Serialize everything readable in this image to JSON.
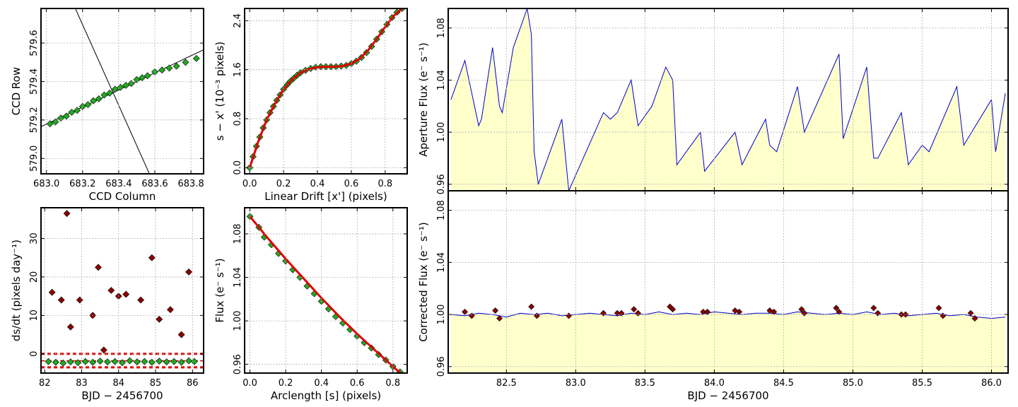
{
  "chart_data": [
    {
      "id": "ccd",
      "type": "scatter",
      "xlabel": "CCD Column",
      "ylabel": "CCD Row",
      "xlim": [
        682.97,
        683.87
      ],
      "ylim": [
        578.92,
        579.78
      ],
      "xticks": [
        683.0,
        683.2,
        683.4,
        683.6,
        683.8
      ],
      "xtick_labels": [
        "683.0",
        "683.2",
        "683.4",
        "683.6",
        "683.8"
      ],
      "yticks": [
        579.0,
        579.2,
        579.4,
        579.6
      ],
      "ytick_labels": [
        "579.0",
        "579.2",
        "579.4",
        "579.6"
      ],
      "grid": true,
      "point_color": "#22aa22",
      "lines": [
        {
          "x": [
            682.97,
            683.87
          ],
          "y": [
            579.165,
            579.565
          ]
        },
        {
          "x": [
            683.16,
            683.57
          ],
          "y": [
            579.78,
            578.92
          ]
        }
      ],
      "points": {
        "x": [
          683.02,
          683.05,
          683.08,
          683.11,
          683.14,
          683.17,
          683.2,
          683.23,
          683.26,
          683.29,
          683.32,
          683.35,
          683.38,
          683.41,
          683.44,
          683.47,
          683.5,
          683.53,
          683.56,
          683.6,
          683.64,
          683.68,
          683.72,
          683.77,
          683.83
        ],
        "y": [
          579.18,
          579.19,
          579.21,
          579.22,
          579.24,
          579.25,
          579.27,
          579.28,
          579.3,
          579.31,
          579.33,
          579.34,
          579.36,
          579.37,
          579.38,
          579.39,
          579.41,
          579.42,
          579.43,
          579.45,
          579.46,
          579.47,
          579.48,
          579.5,
          579.52
        ]
      }
    },
    {
      "id": "drift",
      "type": "scatter",
      "xlabel": "Linear Drift [x'] (pixels)",
      "ylabel": "s − x' (10⁻³ pixels)",
      "xlim": [
        -0.03,
        0.93
      ],
      "ylim": [
        -0.1,
        2.6
      ],
      "xticks": [
        0.0,
        0.2,
        0.4,
        0.6,
        0.8
      ],
      "xtick_labels": [
        "0.0",
        "0.2",
        "0.4",
        "0.6",
        "0.8"
      ],
      "yticks": [
        0.0,
        0.8,
        1.6,
        2.4
      ],
      "ytick_labels": [
        "0.0",
        "0.8",
        "1.6",
        "2.4"
      ],
      "grid": true,
      "point_color": "#22aa22",
      "fit_color": "#dd0000",
      "fit": {
        "x": [
          0.0,
          0.05,
          0.1,
          0.15,
          0.2,
          0.25,
          0.3,
          0.35,
          0.4,
          0.45,
          0.5,
          0.55,
          0.6,
          0.65,
          0.7,
          0.75,
          0.8,
          0.85,
          0.9
        ],
        "y": [
          0.0,
          0.42,
          0.78,
          1.05,
          1.28,
          1.44,
          1.55,
          1.61,
          1.64,
          1.65,
          1.65,
          1.66,
          1.7,
          1.78,
          1.92,
          2.1,
          2.3,
          2.48,
          2.6
        ]
      },
      "points": {
        "x": [
          0.0,
          0.02,
          0.04,
          0.06,
          0.08,
          0.1,
          0.12,
          0.14,
          0.16,
          0.18,
          0.2,
          0.22,
          0.24,
          0.26,
          0.28,
          0.3,
          0.33,
          0.36,
          0.39,
          0.42,
          0.45,
          0.48,
          0.51,
          0.54,
          0.57,
          0.6,
          0.63,
          0.66,
          0.69,
          0.72,
          0.75,
          0.78,
          0.81,
          0.84,
          0.87,
          0.9
        ],
        "y": [
          0.0,
          0.18,
          0.35,
          0.5,
          0.65,
          0.78,
          0.9,
          1.0,
          1.1,
          1.19,
          1.28,
          1.35,
          1.41,
          1.46,
          1.51,
          1.55,
          1.59,
          1.62,
          1.64,
          1.65,
          1.65,
          1.65,
          1.65,
          1.66,
          1.67,
          1.7,
          1.74,
          1.8,
          1.88,
          1.98,
          2.1,
          2.22,
          2.34,
          2.45,
          2.54,
          2.6
        ]
      }
    },
    {
      "id": "aperture",
      "type": "area",
      "xlabel": "",
      "ylabel": "Aperture Flux (e⁻ s⁻¹)",
      "xlim": [
        82.08,
        86.12
      ],
      "ylim": [
        0.955,
        1.095
      ],
      "xticks": [
        82.5,
        83.0,
        83.5,
        84.0,
        84.5,
        85.0,
        85.5,
        86.0
      ],
      "yticks": [
        0.96,
        1.0,
        1.04,
        1.08
      ],
      "ytick_labels": [
        "0.96",
        "1.00",
        "1.04",
        "1.08"
      ],
      "grid": true,
      "line_color": "#0000cc",
      "fill_color": "#ffffcc",
      "x": [
        82.1,
        82.2,
        82.3,
        82.32,
        82.4,
        82.45,
        82.47,
        82.55,
        82.65,
        82.68,
        82.7,
        82.73,
        82.9,
        82.95,
        83.2,
        83.25,
        83.3,
        83.4,
        83.45,
        83.55,
        83.65,
        83.7,
        83.73,
        83.9,
        83.93,
        84.15,
        84.2,
        84.37,
        84.4,
        84.45,
        84.6,
        84.65,
        84.9,
        84.93,
        85.1,
        85.15,
        85.18,
        85.35,
        85.4,
        85.5,
        85.55,
        85.75,
        85.8,
        86.0,
        86.03,
        86.1
      ],
      "y": [
        1.025,
        1.055,
        1.005,
        1.01,
        1.065,
        1.02,
        1.015,
        1.065,
        1.095,
        1.075,
        0.985,
        0.96,
        1.01,
        0.955,
        1.015,
        1.01,
        1.015,
        1.04,
        1.005,
        1.02,
        1.05,
        1.04,
        0.975,
        1.0,
        0.97,
        1.0,
        0.975,
        1.01,
        0.99,
        0.985,
        1.035,
        1.0,
        1.06,
        0.995,
        1.05,
        0.98,
        0.98,
        1.015,
        0.975,
        0.99,
        0.985,
        1.035,
        0.99,
        1.025,
        0.985,
        1.03
      ]
    },
    {
      "id": "dsdt",
      "type": "scatter",
      "xlabel": "BJD − 2456700",
      "ylabel": "ds/dt (pixels day⁻¹)",
      "xlim": [
        81.9,
        86.3
      ],
      "ylim": [
        -5,
        38
      ],
      "xticks": [
        82,
        83,
        84,
        85,
        86
      ],
      "xtick_labels": [
        "82",
        "83",
        "84",
        "85",
        "86"
      ],
      "yticks": [
        0,
        10,
        20,
        30
      ],
      "ytick_labels": [
        "0",
        "10",
        "20",
        "30"
      ],
      "grid": true,
      "threshold_color": "#dd0000",
      "thresholds": [
        0.0,
        -3.5,
        -1.8
      ],
      "points_green": {
        "x": [
          82.1,
          82.3,
          82.5,
          82.7,
          82.9,
          83.1,
          83.3,
          83.5,
          83.7,
          83.9,
          84.1,
          84.3,
          84.5,
          84.7,
          84.9,
          85.1,
          85.3,
          85.5,
          85.7,
          85.9,
          86.05
        ],
        "y": [
          -2,
          -2.2,
          -2.4,
          -2.1,
          -2.3,
          -2,
          -2.2,
          -1.9,
          -2.1,
          -2,
          -2.3,
          -1.8,
          -2.1,
          -2,
          -2.2,
          -1.9,
          -2.1,
          -2,
          -2.2,
          -1.8,
          -2
        ]
      },
      "points_red": {
        "x": [
          82.2,
          82.6,
          82.7,
          82.95,
          83.3,
          83.45,
          83.8,
          84.0,
          84.2,
          84.6,
          84.9,
          85.1,
          85.4,
          85.9,
          82.45,
          83.6,
          85.7
        ],
        "y": [
          16,
          36.5,
          7,
          14,
          10,
          22.5,
          16.5,
          15,
          15.5,
          14,
          25,
          9,
          11.5,
          21.3,
          14,
          1,
          5
        ]
      }
    },
    {
      "id": "fluxarc",
      "type": "scatter",
      "xlabel": "Arclength [s] (pixels)",
      "ylabel": "Flux (e⁻ s⁻¹)",
      "xlim": [
        -0.03,
        0.88
      ],
      "ylim": [
        0.952,
        1.104
      ],
      "xticks": [
        0.0,
        0.2,
        0.4,
        0.6,
        0.8
      ],
      "xtick_labels": [
        "0.0",
        "0.2",
        "0.4",
        "0.6",
        "0.8"
      ],
      "yticks": [
        0.96,
        1.0,
        1.04,
        1.08
      ],
      "ytick_labels": [
        "0.96",
        "1.00",
        "1.04",
        "1.08"
      ],
      "grid": true,
      "point_color": "#22aa22",
      "fit_color": "#dd0000",
      "fit": {
        "x": [
          0.0,
          0.1,
          0.2,
          0.3,
          0.4,
          0.5,
          0.6,
          0.7,
          0.8,
          0.85
        ],
        "y": [
          1.096,
          1.076,
          1.057,
          1.039,
          1.021,
          1.004,
          0.988,
          0.973,
          0.958,
          0.951
        ]
      },
      "points": {
        "x": [
          0.0,
          0.05,
          0.08,
          0.12,
          0.16,
          0.2,
          0.24,
          0.28,
          0.32,
          0.36,
          0.4,
          0.44,
          0.48,
          0.52,
          0.56,
          0.6,
          0.64,
          0.68,
          0.72,
          0.76,
          0.8,
          0.84
        ],
        "y": [
          1.096,
          1.086,
          1.077,
          1.07,
          1.062,
          1.055,
          1.047,
          1.04,
          1.032,
          1.025,
          1.018,
          1.011,
          1.004,
          0.998,
          0.992,
          0.986,
          0.98,
          0.975,
          0.969,
          0.964,
          0.958,
          0.953
        ]
      }
    },
    {
      "id": "corrected",
      "type": "line",
      "xlabel": "BJD − 2456700",
      "ylabel": "Corrected Flux (e⁻ s⁻¹)",
      "xlim": [
        82.08,
        86.12
      ],
      "ylim": [
        0.955,
        1.095
      ],
      "xticks": [
        82.5,
        83.0,
        83.5,
        84.0,
        84.5,
        85.0,
        85.5,
        86.0
      ],
      "xtick_labels": [
        "82.5",
        "83.0",
        "83.5",
        "84.0",
        "84.5",
        "85.0",
        "85.5",
        "86.0"
      ],
      "yticks": [
        0.96,
        1.0,
        1.04,
        1.08
      ],
      "ytick_labels": [
        "0.96",
        "1.00",
        "1.04",
        "1.08"
      ],
      "grid": true,
      "line_color": "#0000cc",
      "fill_color": "#ffffcc",
      "x": [
        82.1,
        82.2,
        82.3,
        82.4,
        82.5,
        82.6,
        82.7,
        82.8,
        82.9,
        83.0,
        83.1,
        83.2,
        83.3,
        83.4,
        83.5,
        83.6,
        83.7,
        83.8,
        83.9,
        84.0,
        84.1,
        84.2,
        84.3,
        84.4,
        84.5,
        84.6,
        84.7,
        84.8,
        84.9,
        85.0,
        85.1,
        85.2,
        85.3,
        85.4,
        85.5,
        85.6,
        85.7,
        85.8,
        85.9,
        86.0,
        86.1
      ],
      "y": [
        1.0,
        0.999,
        1.001,
        1.0,
        0.998,
        1.001,
        1.0,
        1.001,
        0.999,
        1.0,
        1.001,
        1.0,
        0.999,
        1.001,
        1.0,
        1.002,
        1.0,
        1.001,
        1.0,
        1.002,
        1.001,
        1.0,
        1.001,
        1.001,
        1.0,
        1.002,
        1.001,
        1.0,
        1.001,
        1.0,
        1.002,
        1.0,
        1.001,
        0.999,
        1.0,
        1.001,
        0.999,
        1.0,
        0.998,
        0.997,
        0.998
      ],
      "outliers": {
        "x": [
          82.2,
          82.25,
          82.42,
          82.45,
          82.68,
          82.72,
          82.95,
          83.2,
          83.3,
          83.33,
          83.42,
          83.45,
          83.68,
          83.7,
          83.92,
          83.95,
          84.15,
          84.18,
          84.4,
          84.43,
          84.63,
          84.65,
          84.88,
          84.9,
          85.15,
          85.18,
          85.35,
          85.38,
          85.62,
          85.65,
          85.85,
          85.88
        ],
        "y": [
          1.002,
          0.999,
          1.003,
          0.997,
          1.006,
          0.999,
          0.999,
          1.001,
          1.001,
          1.001,
          1.004,
          1.001,
          1.006,
          1.004,
          1.002,
          1.002,
          1.003,
          1.002,
          1.003,
          1.002,
          1.004,
          1.001,
          1.005,
          1.002,
          1.005,
          1.001,
          1.0,
          1.0,
          1.005,
          0.999,
          1.001,
          0.997
        ]
      }
    }
  ]
}
